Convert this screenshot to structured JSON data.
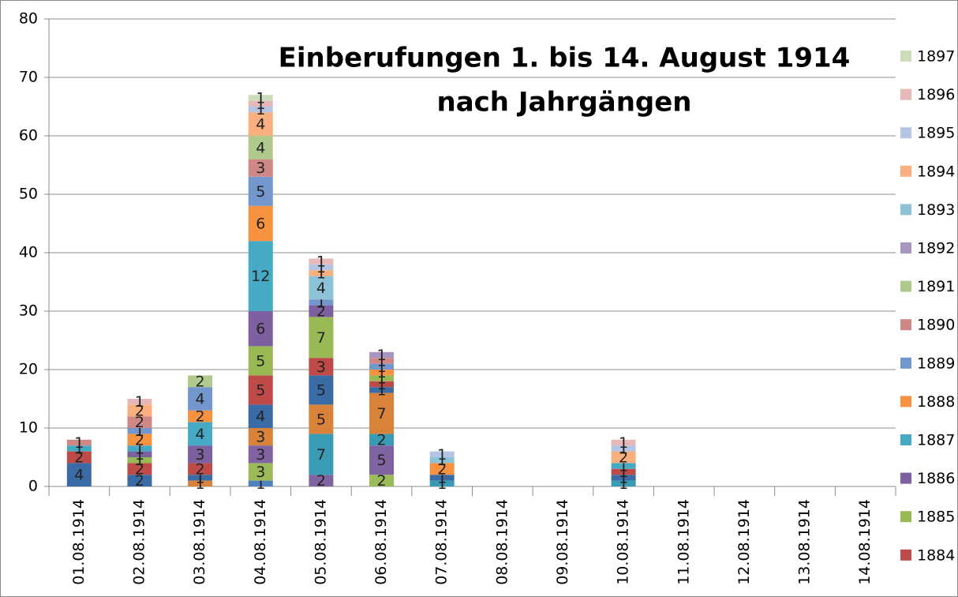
{
  "chart_data": {
    "type": "stacked_bar",
    "title": [
      "Einberufungen 1. bis 14. August 1914",
      "nach Jahrgängen"
    ],
    "categories": [
      "01.08.1914",
      "02.08.1914",
      "03.08.1914",
      "04.08.1914",
      "05.08.1914",
      "06.08.1914",
      "07.08.1914",
      "08.08.1914",
      "09.08.1914",
      "10.08.1914",
      "11.08.1914",
      "12.08.1914",
      "13.08.1914",
      "14.08.1914"
    ],
    "ylim": [
      0,
      80
    ],
    "yticks": [
      0,
      10,
      20,
      30,
      40,
      50,
      60,
      70,
      80
    ],
    "grid": true,
    "legend": "right",
    "series": [
      {
        "color": "#4F81BD",
        "values": [
          null,
          null,
          null,
          1,
          null,
          null,
          null,
          null,
          null,
          null,
          null,
          null,
          null,
          null
        ]
      },
      {
        "color": "#9BBB59",
        "values": [
          null,
          null,
          null,
          3,
          null,
          2,
          null,
          null,
          null,
          null,
          null,
          null,
          null,
          null
        ]
      },
      {
        "color": "#8064A2",
        "values": [
          null,
          null,
          null,
          3,
          2,
          5,
          null,
          null,
          null,
          null,
          null,
          null,
          null,
          null
        ]
      },
      {
        "color": "#3A9BB4",
        "values": [
          null,
          null,
          null,
          null,
          7,
          2,
          1,
          null,
          null,
          1,
          null,
          null,
          null,
          null
        ]
      },
      {
        "color": "#D9833A",
        "values": [
          null,
          null,
          1,
          3,
          5,
          7,
          null,
          null,
          null,
          null,
          null,
          null,
          null,
          null
        ]
      },
      {
        "color": "#3B6BA5",
        "values": [
          4,
          2,
          1,
          4,
          5,
          1,
          1,
          null,
          null,
          1,
          null,
          null,
          null,
          null
        ]
      },
      {
        "name": "1884",
        "color": "#BE4B48",
        "values": [
          2,
          2,
          2,
          5,
          3,
          1,
          null,
          null,
          null,
          1,
          null,
          null,
          null,
          null
        ]
      },
      {
        "name": "1885",
        "color": "#98B954",
        "values": [
          null,
          1,
          null,
          5,
          7,
          1,
          null,
          null,
          null,
          null,
          null,
          null,
          null,
          null
        ]
      },
      {
        "name": "1886",
        "color": "#7D60A0",
        "values": [
          null,
          1,
          3,
          6,
          2,
          null,
          null,
          null,
          null,
          null,
          null,
          null,
          null,
          null
        ]
      },
      {
        "name": "1887",
        "color": "#46AAC5",
        "values": [
          1,
          1,
          4,
          12,
          null,
          null,
          null,
          null,
          null,
          1,
          null,
          null,
          null,
          null
        ]
      },
      {
        "name": "1888",
        "color": "#F69240",
        "values": [
          null,
          2,
          2,
          6,
          null,
          1,
          2,
          null,
          null,
          null,
          null,
          null,
          null,
          null
        ]
      },
      {
        "name": "1889",
        "color": "#7396CC",
        "values": [
          null,
          1,
          4,
          5,
          1,
          1,
          null,
          null,
          null,
          null,
          null,
          null,
          null,
          null
        ]
      },
      {
        "name": "1890",
        "color": "#D08886",
        "values": [
          1,
          2,
          null,
          3,
          null,
          1,
          null,
          null,
          null,
          null,
          null,
          null,
          null,
          null
        ]
      },
      {
        "name": "1891",
        "color": "#B0C98D",
        "values": [
          null,
          null,
          2,
          4,
          null,
          null,
          null,
          null,
          null,
          null,
          null,
          null,
          null,
          null
        ]
      },
      {
        "name": "1892",
        "color": "#A797C0",
        "values": [
          null,
          null,
          null,
          null,
          null,
          1,
          null,
          null,
          null,
          null,
          null,
          null,
          null,
          null
        ]
      },
      {
        "name": "1893",
        "color": "#8EC3D7",
        "values": [
          null,
          null,
          null,
          null,
          4,
          null,
          1,
          null,
          null,
          null,
          null,
          null,
          null,
          null
        ]
      },
      {
        "name": "1894",
        "color": "#F9B07E",
        "values": [
          null,
          2,
          null,
          4,
          1,
          null,
          null,
          null,
          null,
          2,
          null,
          null,
          null,
          null
        ]
      },
      {
        "name": "1895",
        "color": "#B4C4E4",
        "values": [
          null,
          null,
          null,
          1,
          1,
          null,
          1,
          null,
          null,
          1,
          null,
          null,
          null,
          null
        ]
      },
      {
        "name": "1896",
        "color": "#E6B9B8",
        "values": [
          null,
          1,
          null,
          1,
          1,
          null,
          null,
          null,
          null,
          1,
          null,
          null,
          null,
          null
        ]
      },
      {
        "name": "1897",
        "color": "#CDDDB9",
        "values": [
          null,
          null,
          null,
          1,
          null,
          null,
          null,
          null,
          null,
          null,
          null,
          null,
          null,
          null
        ]
      }
    ]
  }
}
